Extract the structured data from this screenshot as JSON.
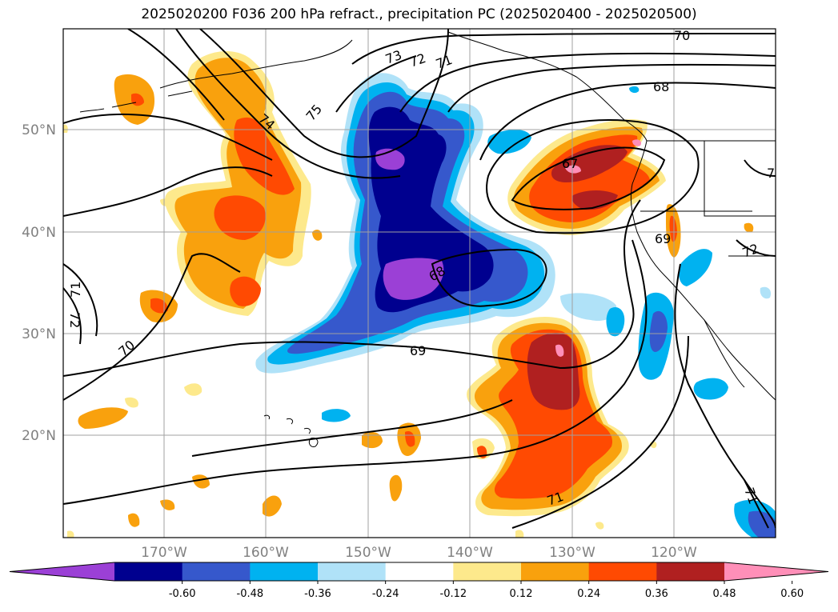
{
  "title": "2025020200 F036 200 hPa refract., precipitation PC (2025020400 - 2025020500)",
  "lat_labels": [
    "50°N",
    "40°N",
    "30°N",
    "20°N"
  ],
  "lon_labels": [
    "170°W",
    "160°W",
    "150°W",
    "140°W",
    "130°W",
    "120°W"
  ],
  "contour_labels": [
    "70",
    "73",
    "72",
    "71",
    "68",
    "75",
    "74",
    "67",
    "7",
    "69",
    "72",
    "68",
    "69",
    "72",
    "71",
    "70",
    "71",
    "71"
  ],
  "colorbar": {
    "ticks": [
      "-0.60",
      "-0.48",
      "-0.36",
      "-0.24",
      "-0.12",
      "0.12",
      "0.24",
      "0.36",
      "0.48",
      "0.60"
    ],
    "colors": [
      "#9b40d6",
      "#00008f",
      "#3658cc",
      "#00b2f0",
      "#b0e2f8",
      "#ffffff",
      "#fde98c",
      "#f9a10d",
      "#ff4a02",
      "#b02020",
      "#ff8fb8"
    ]
  }
}
